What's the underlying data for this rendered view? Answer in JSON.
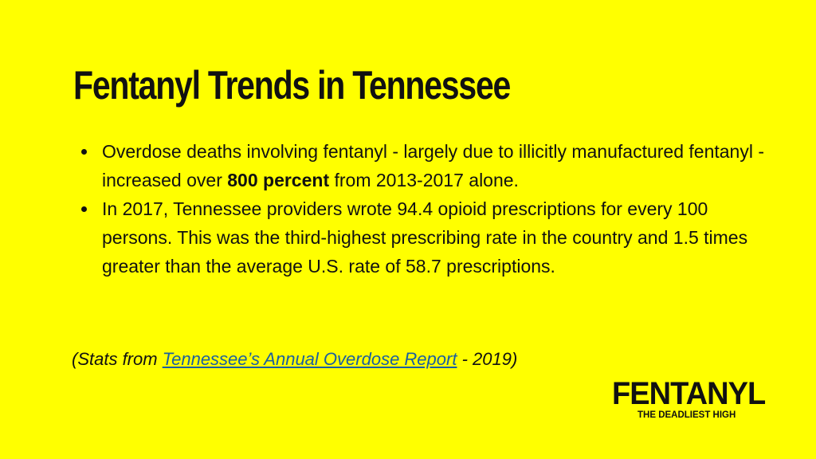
{
  "slide": {
    "title": "Fentanyl Trends in Tennessee",
    "bullets": [
      {
        "text_before": "Overdose deaths involving fentanyl - largely due to illicitly manufactured fentanyl - increased over ",
        "bold": "800 percent",
        "text_after": " from 2013-2017 alone."
      },
      {
        "text": "In 2017, Tennessee providers wrote 94.4 opioid prescriptions for every 100 persons. This was the third-highest prescribing rate in the country and 1.5 times greater than the average U.S. rate of 58.7 prescriptions."
      }
    ],
    "source": {
      "prefix": "(Stats from ",
      "link_text": "Tennessee’s Annual Overdose Report",
      "suffix": " - 2019)"
    },
    "logo": {
      "word": "FENTANYL",
      "tagline": "THE DEADLIEST HIGH"
    }
  },
  "colors": {
    "background": "#FFFF00",
    "text": "#111111",
    "link": "#1a5fa0"
  }
}
